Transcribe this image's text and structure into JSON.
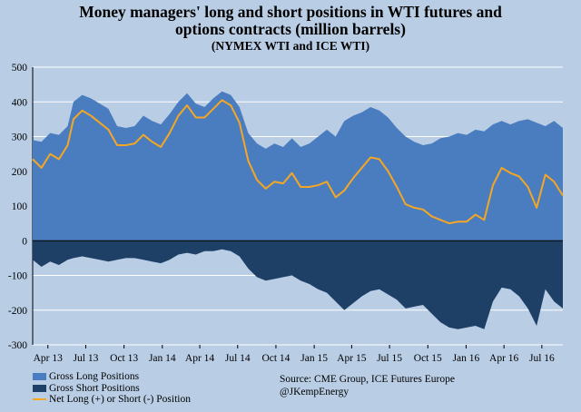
{
  "title": "Money managers' long and short positions in WTI futures and options contracts (million barrels)",
  "title_lines": [
    "Money managers' long and short positions in WTI futures and",
    "options contracts (million barrels)"
  ],
  "subtitle": "(NYMEX WTI and ICE WTI)",
  "source": {
    "line1": "Source:  CME Group, ICE Futures Europe",
    "line2": "@JKempEnergy"
  },
  "colors": {
    "background": "#b9cde5",
    "long": "#4a7dbf",
    "short": "#1e3f66",
    "net": "#f5a623"
  },
  "chart_data": {
    "type": "area",
    "x_tick_labels": [
      "Apr 13",
      "Jul 13",
      "Oct 13",
      "Jan 14",
      "Apr 14",
      "Jul 14",
      "Oct 14",
      "Jan 15",
      "Apr 15",
      "Jul 15",
      "Oct 15",
      "Jan 16",
      "Apr 16",
      "Jul 16"
    ],
    "y_ticks": [
      500,
      400,
      300,
      200,
      100,
      0,
      -100,
      -200,
      -300
    ],
    "ylim": [
      -300,
      500
    ],
    "xlim": [
      "2013-03-26",
      "2016-09-20"
    ],
    "grid": true,
    "legend_position": "bottom-left",
    "series": [
      {
        "name": "Gross Long Positions",
        "kind": "area",
        "x": [
          "2013-03-26",
          "2013-04-16",
          "2013-05-07",
          "2013-05-28",
          "2013-06-18",
          "2013-07-02",
          "2013-07-23",
          "2013-08-13",
          "2013-09-03",
          "2013-09-24",
          "2013-10-15",
          "2013-11-05",
          "2013-11-26",
          "2013-12-17",
          "2014-01-07",
          "2014-01-28",
          "2014-02-18",
          "2014-03-11",
          "2014-04-01",
          "2014-04-22",
          "2014-05-13",
          "2014-06-03",
          "2014-06-24",
          "2014-07-15",
          "2014-08-05",
          "2014-08-26",
          "2014-09-16",
          "2014-10-07",
          "2014-10-28",
          "2014-11-18",
          "2014-12-09",
          "2014-12-30",
          "2015-01-20",
          "2015-02-10",
          "2015-03-03",
          "2015-03-24",
          "2015-04-14",
          "2015-05-05",
          "2015-05-26",
          "2015-06-16",
          "2015-07-07",
          "2015-07-28",
          "2015-08-18",
          "2015-09-08",
          "2015-09-29",
          "2015-10-20",
          "2015-11-10",
          "2015-12-01",
          "2015-12-22",
          "2016-01-12",
          "2016-02-02",
          "2016-02-23",
          "2016-03-15",
          "2016-04-05",
          "2016-04-26",
          "2016-05-17",
          "2016-06-07",
          "2016-06-28",
          "2016-07-19",
          "2016-08-09",
          "2016-08-30",
          "2016-09-20"
        ],
        "values": [
          290,
          285,
          310,
          305,
          330,
          400,
          420,
          410,
          395,
          380,
          330,
          325,
          330,
          360,
          345,
          335,
          365,
          400,
          425,
          395,
          385,
          410,
          430,
          420,
          385,
          310,
          280,
          265,
          280,
          270,
          295,
          270,
          280,
          300,
          320,
          300,
          345,
          360,
          370,
          385,
          375,
          355,
          325,
          300,
          285,
          275,
          280,
          295,
          300,
          310,
          305,
          320,
          315,
          335,
          345,
          335,
          345,
          350,
          340,
          330,
          345,
          325
        ]
      },
      {
        "name": "Gross Short Positions",
        "kind": "area",
        "x": [
          "2013-03-26",
          "2013-04-16",
          "2013-05-07",
          "2013-05-28",
          "2013-06-18",
          "2013-07-02",
          "2013-07-23",
          "2013-08-13",
          "2013-09-03",
          "2013-09-24",
          "2013-10-15",
          "2013-11-05",
          "2013-11-26",
          "2013-12-17",
          "2014-01-07",
          "2014-01-28",
          "2014-02-18",
          "2014-03-11",
          "2014-04-01",
          "2014-04-22",
          "2014-05-13",
          "2014-06-03",
          "2014-06-24",
          "2014-07-15",
          "2014-08-05",
          "2014-08-26",
          "2014-09-16",
          "2014-10-07",
          "2014-10-28",
          "2014-11-18",
          "2014-12-09",
          "2014-12-30",
          "2015-01-20",
          "2015-02-10",
          "2015-03-03",
          "2015-03-24",
          "2015-04-14",
          "2015-05-05",
          "2015-05-26",
          "2015-06-16",
          "2015-07-07",
          "2015-07-28",
          "2015-08-18",
          "2015-09-08",
          "2015-09-29",
          "2015-10-20",
          "2015-11-10",
          "2015-12-01",
          "2015-12-22",
          "2016-01-12",
          "2016-02-02",
          "2016-02-23",
          "2016-03-15",
          "2016-04-05",
          "2016-04-26",
          "2016-05-17",
          "2016-06-07",
          "2016-06-28",
          "2016-07-19",
          "2016-08-09",
          "2016-08-30",
          "2016-09-20"
        ],
        "values": [
          -55,
          -75,
          -60,
          -70,
          -55,
          -50,
          -45,
          -50,
          -55,
          -60,
          -55,
          -50,
          -50,
          -55,
          -60,
          -65,
          -55,
          -40,
          -35,
          -40,
          -30,
          -30,
          -25,
          -30,
          -45,
          -80,
          -105,
          -115,
          -110,
          -105,
          -100,
          -115,
          -125,
          -140,
          -150,
          -175,
          -200,
          -180,
          -160,
          -145,
          -140,
          -155,
          -170,
          -195,
          -190,
          -185,
          -210,
          -235,
          -250,
          -255,
          -250,
          -245,
          -255,
          -175,
          -135,
          -140,
          -160,
          -195,
          -245,
          -140,
          -175,
          -195
        ]
      },
      {
        "name": "Net Long (+) or Short (-) Position",
        "kind": "line",
        "x": [
          "2013-03-26",
          "2013-04-16",
          "2013-05-07",
          "2013-05-28",
          "2013-06-18",
          "2013-07-02",
          "2013-07-23",
          "2013-08-13",
          "2013-09-03",
          "2013-09-24",
          "2013-10-15",
          "2013-11-05",
          "2013-11-26",
          "2013-12-17",
          "2014-01-07",
          "2014-01-28",
          "2014-02-18",
          "2014-03-11",
          "2014-04-01",
          "2014-04-22",
          "2014-05-13",
          "2014-06-03",
          "2014-06-24",
          "2014-07-15",
          "2014-08-05",
          "2014-08-26",
          "2014-09-16",
          "2014-10-07",
          "2014-10-28",
          "2014-11-18",
          "2014-12-09",
          "2014-12-30",
          "2015-01-20",
          "2015-02-10",
          "2015-03-03",
          "2015-03-24",
          "2015-04-14",
          "2015-05-05",
          "2015-05-26",
          "2015-06-16",
          "2015-07-07",
          "2015-07-28",
          "2015-08-18",
          "2015-09-08",
          "2015-09-29",
          "2015-10-20",
          "2015-11-10",
          "2015-12-01",
          "2015-12-22",
          "2016-01-12",
          "2016-02-02",
          "2016-02-23",
          "2016-03-15",
          "2016-04-05",
          "2016-04-26",
          "2016-05-17",
          "2016-06-07",
          "2016-06-28",
          "2016-07-19",
          "2016-08-09",
          "2016-08-30",
          "2016-09-20"
        ],
        "values": [
          235,
          210,
          250,
          235,
          275,
          350,
          375,
          360,
          340,
          320,
          275,
          275,
          280,
          305,
          285,
          270,
          310,
          360,
          390,
          355,
          355,
          380,
          405,
          390,
          340,
          230,
          175,
          150,
          170,
          165,
          195,
          155,
          155,
          160,
          170,
          125,
          145,
          180,
          210,
          240,
          235,
          200,
          155,
          105,
          95,
          90,
          70,
          60,
          50,
          55,
          55,
          75,
          60,
          160,
          210,
          195,
          185,
          155,
          95,
          190,
          170,
          130
        ]
      }
    ]
  }
}
